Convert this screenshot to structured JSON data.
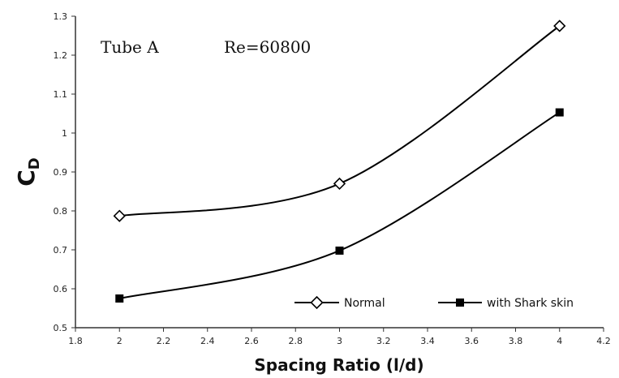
{
  "chart_data": {
    "type": "line",
    "xlabel": "Spacing Ratio (l/d)",
    "ylabel_main": "C",
    "ylabel_sub": "D",
    "xlim": [
      1.8,
      4.2
    ],
    "ylim": [
      0.5,
      1.3
    ],
    "xticks": [
      "1.8",
      "2",
      "2.2",
      "2.4",
      "2.6",
      "2.8",
      "3",
      "3.2",
      "3.4",
      "3.6",
      "3.8",
      "4",
      "4.2"
    ],
    "yticks": [
      "0.5",
      "0.6",
      "0.7",
      "0.8",
      "0.9",
      "1",
      "1.1",
      "1.2",
      "1.3"
    ],
    "annotations": {
      "tube": "Tube A",
      "reynolds": "Re=60800"
    },
    "grid": false,
    "legend_position": "bottom-right",
    "series": [
      {
        "name": "Normal",
        "marker": "open-diamond",
        "x": [
          2,
          3,
          4
        ],
        "y": [
          0.787,
          0.87,
          1.275
        ]
      },
      {
        "name": "with Shark skin",
        "marker": "filled-square",
        "x": [
          2,
          3,
          4
        ],
        "y": [
          0.575,
          0.698,
          1.053
        ]
      }
    ]
  }
}
